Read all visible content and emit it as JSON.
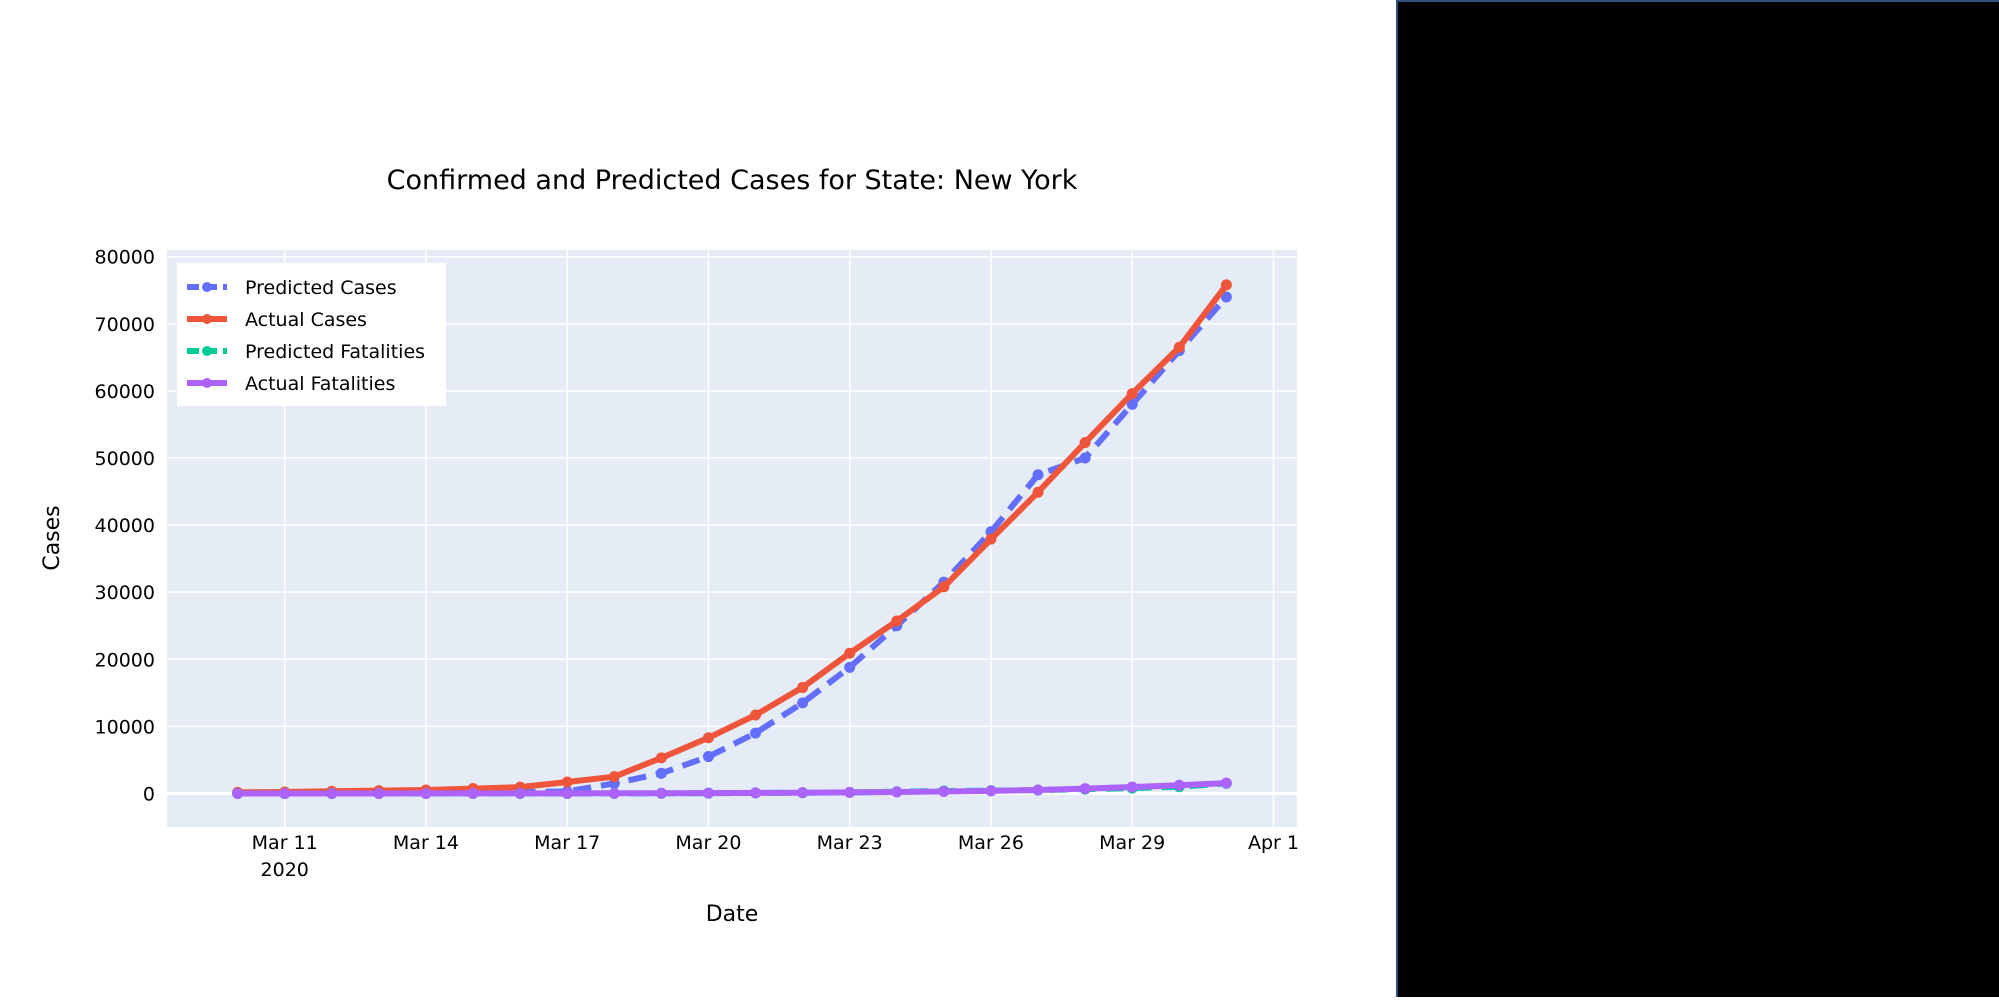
{
  "chart_data": {
    "type": "line",
    "title": "Confirmed and Predicted Cases for State: New York",
    "xlabel": "Date",
    "ylabel": "Cases",
    "x": [
      "2020-03-10",
      "2020-03-11",
      "2020-03-12",
      "2020-03-13",
      "2020-03-14",
      "2020-03-15",
      "2020-03-16",
      "2020-03-17",
      "2020-03-18",
      "2020-03-19",
      "2020-03-20",
      "2020-03-21",
      "2020-03-22",
      "2020-03-23",
      "2020-03-24",
      "2020-03-25",
      "2020-03-26",
      "2020-03-27",
      "2020-03-28",
      "2020-03-29",
      "2020-03-30",
      "2020-03-31"
    ],
    "xlim": [
      "2020-03-08T12:00",
      "2020-04-01T12:00"
    ],
    "x_ticks": [
      {
        "date": "2020-03-11",
        "label": "Mar 11",
        "sublabel": "2020"
      },
      {
        "date": "2020-03-14",
        "label": "Mar 14"
      },
      {
        "date": "2020-03-17",
        "label": "Mar 17"
      },
      {
        "date": "2020-03-20",
        "label": "Mar 20"
      },
      {
        "date": "2020-03-23",
        "label": "Mar 23"
      },
      {
        "date": "2020-03-26",
        "label": "Mar 26"
      },
      {
        "date": "2020-03-29",
        "label": "Mar 29"
      },
      {
        "date": "2020-04-01",
        "label": "Apr 1"
      }
    ],
    "ylim": [
      -5000,
      81000
    ],
    "y_ticks": [
      0,
      10000,
      20000,
      30000,
      40000,
      50000,
      60000,
      70000,
      80000
    ],
    "grid": true,
    "legend_position": "top-left",
    "plot_background": "#e5ecf6",
    "series": [
      {
        "name": "Predicted Cases",
        "color": "#636efa",
        "dash": true,
        "values": [
          0,
          0,
          0,
          0,
          400,
          500,
          200,
          300,
          1500,
          3000,
          5500,
          9000,
          13500,
          18800,
          25000,
          31500,
          39000,
          47500,
          50000,
          58000,
          66000,
          74000
        ]
      },
      {
        "name": "Actual Cases",
        "color": "#ef553b",
        "dash": false,
        "values": [
          170,
          220,
          330,
          420,
          520,
          730,
          950,
          1700,
          2500,
          5300,
          8300,
          11700,
          15800,
          20900,
          25700,
          30800,
          37900,
          44900,
          52300,
          59600,
          66500,
          75800
        ]
      },
      {
        "name": "Predicted Fatalities",
        "color": "#00cc96",
        "dash": true,
        "values": [
          0,
          0,
          0,
          0,
          0,
          0,
          0,
          0,
          10,
          20,
          40,
          70,
          110,
          160,
          260,
          360,
          420,
          500,
          650,
          800,
          1000,
          1500
        ]
      },
      {
        "name": "Actual Fatalities",
        "color": "#ab63fa",
        "dash": false,
        "values": [
          0,
          0,
          0,
          0,
          2,
          3,
          7,
          12,
          20,
          39,
          57,
          80,
          117,
          157,
          210,
          285,
          385,
          519,
          728,
          965,
          1218,
          1550
        ]
      }
    ]
  }
}
